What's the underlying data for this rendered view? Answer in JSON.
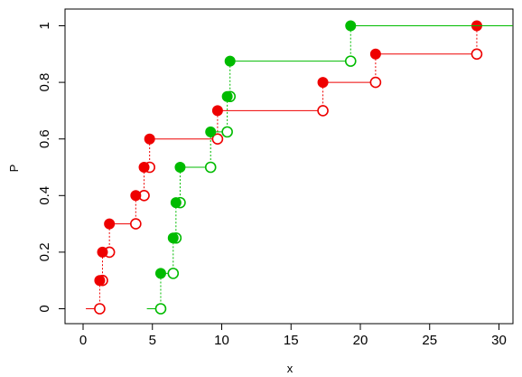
{
  "chart_data": {
    "type": "line",
    "title": "",
    "xlabel": "x",
    "ylabel": "P",
    "xlim": [
      0,
      31
    ],
    "ylim": [
      0,
      1
    ],
    "x_ticks": [
      0,
      5,
      10,
      15,
      20,
      25,
      30
    ],
    "y_ticks": [
      0,
      0.2,
      0.4,
      0.6,
      0.8,
      1
    ],
    "x_tick_labels": [
      "0",
      "5",
      "10",
      "15",
      "20",
      "25",
      "30"
    ],
    "y_tick_labels": [
      "0",
      "0.2",
      "0.4",
      "0.6",
      "0.8",
      "1"
    ],
    "grid": false,
    "series": [
      {
        "color": "#ee0000",
        "step_x": [
          1.2,
          1.4,
          1.9,
          3.8,
          4.4,
          4.8,
          9.7,
          17.3,
          21.1,
          28.4
        ],
        "levels": [
          0,
          0.1,
          0.2,
          0.3,
          0.4,
          0.5,
          0.6,
          0.7,
          0.8,
          0.9,
          1
        ]
      },
      {
        "color": "#00bb00",
        "step_x": [
          5.6,
          6.5,
          6.7,
          7.0,
          9.2,
          10.4,
          10.6,
          19.3
        ],
        "levels": [
          0,
          0.125,
          0.25,
          0.375,
          0.5,
          0.625,
          0.75,
          0.875,
          1
        ]
      }
    ]
  }
}
